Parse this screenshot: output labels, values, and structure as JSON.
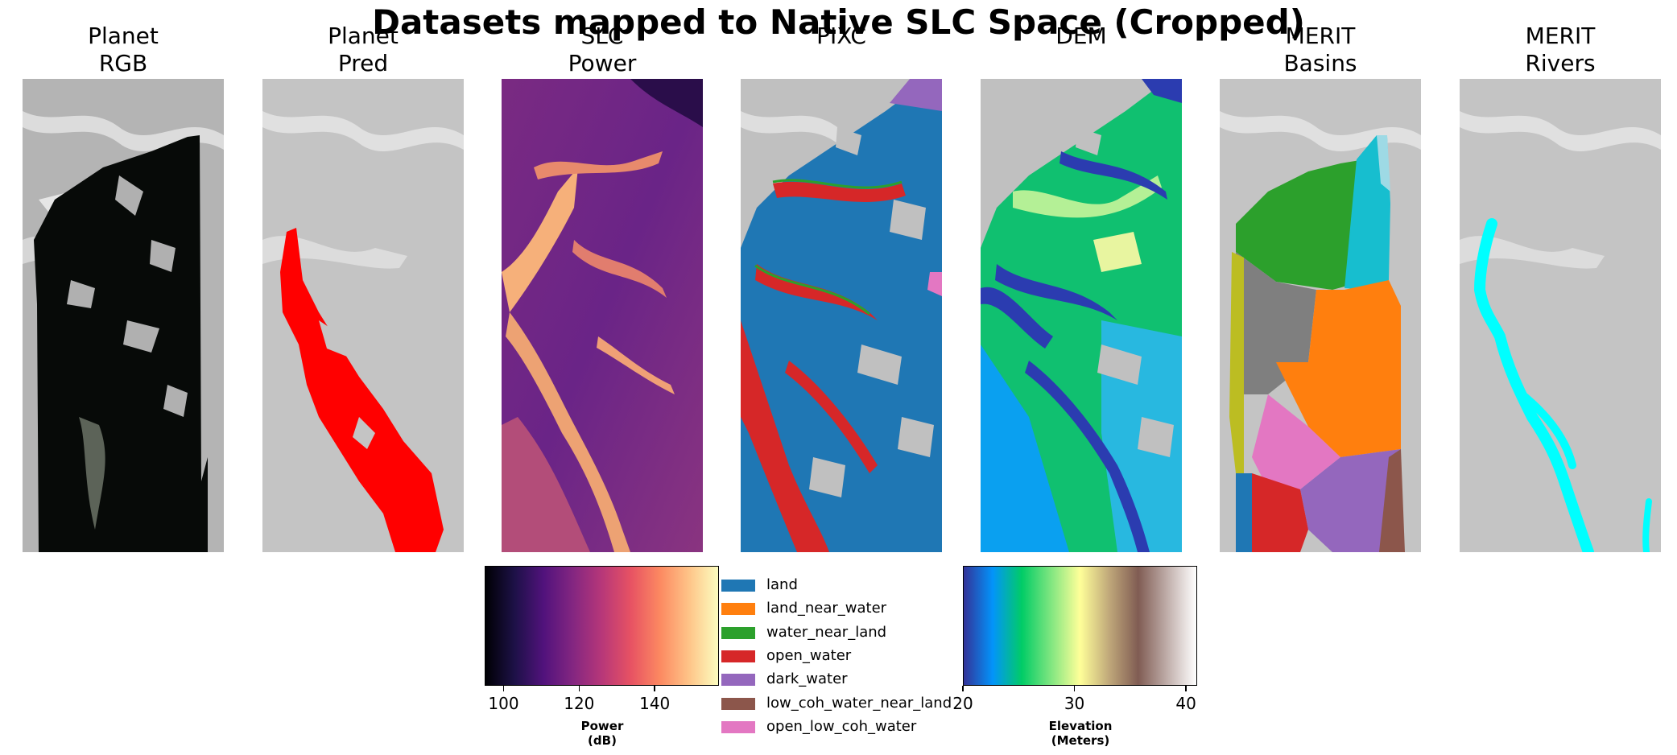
{
  "title": "Datasets mapped to Native SLC Space (Cropped)",
  "panels": [
    {
      "id": "planet-rgb",
      "line1": "Planet",
      "line2": "RGB"
    },
    {
      "id": "planet-pred",
      "line1": "Planet",
      "line2": "Pred"
    },
    {
      "id": "slc-power",
      "line1": "SLC",
      "line2": "Power"
    },
    {
      "id": "pixc",
      "line1": "PIXC",
      "line2": ""
    },
    {
      "id": "dem",
      "line1": "DEM",
      "line2": ""
    },
    {
      "id": "merit-basins",
      "line1": "MERIT",
      "line2": "Basins"
    },
    {
      "id": "merit-rivers",
      "line1": "MERIT",
      "line2": "Rivers"
    }
  ],
  "power_colorbar": {
    "label_line1": "Power",
    "label_line2": "(dB)",
    "range": [
      95,
      157
    ],
    "ticks": [
      {
        "v": 100,
        "label": "100"
      },
      {
        "v": 120,
        "label": "120"
      },
      {
        "v": 140,
        "label": "140"
      }
    ],
    "colormap": "magma"
  },
  "elevation_colorbar": {
    "label_line1": "Elevation",
    "label_line2": "(Meters)",
    "range": [
      20,
      41
    ],
    "ticks": [
      {
        "v": 20,
        "label": "20"
      },
      {
        "v": 30,
        "label": "30"
      },
      {
        "v": 40,
        "label": "40"
      }
    ],
    "colormap": "terrain"
  },
  "legend": [
    {
      "label": "land",
      "color": "#1f77b4"
    },
    {
      "label": "land_near_water",
      "color": "#ff7f0e"
    },
    {
      "label": "water_near_land",
      "color": "#2ca02c"
    },
    {
      "label": "open_water",
      "color": "#d62728"
    },
    {
      "label": "dark_water",
      "color": "#9467bd"
    },
    {
      "label": "low_coh_water_near_land",
      "color": "#8c564b"
    },
    {
      "label": "open_low_coh_water",
      "color": "#e377c2"
    }
  ],
  "colors": {
    "pred": "#ff0000",
    "rivers": "#00ffff",
    "basin_colors": [
      "#2ca02c",
      "#17becf",
      "#9edae5",
      "#7f7f7f",
      "#bcbd22",
      "#ff7f0e",
      "#e377c2",
      "#d62728",
      "#9467bd",
      "#8c564b",
      "#1f77b4"
    ]
  }
}
